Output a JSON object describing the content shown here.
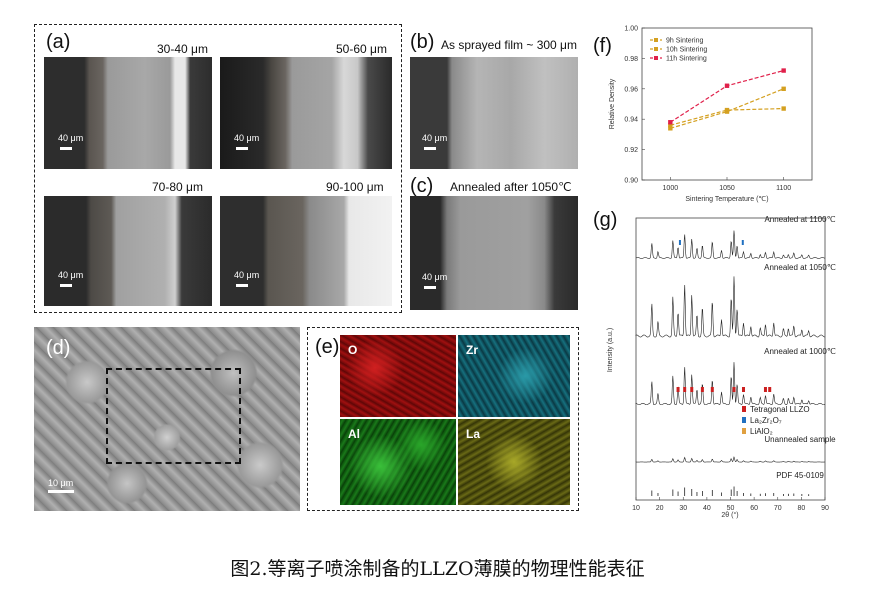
{
  "panels": {
    "a": {
      "label": "(a)",
      "images": [
        {
          "caption": "30-40 μm",
          "scale": "40 μm"
        },
        {
          "caption": "50-60 μm",
          "scale": "40 μm"
        },
        {
          "caption": "70-80 μm",
          "scale": "40 μm"
        },
        {
          "caption": "90-100 μm",
          "scale": "40 μm"
        }
      ]
    },
    "b": {
      "label": "(b)",
      "caption": "As sprayed film ~ 300 μm",
      "scale": "40 μm"
    },
    "c": {
      "label": "(c)",
      "caption": "Annealed after 1050℃",
      "scale": "40 μm"
    },
    "d": {
      "label": "(d)",
      "scale": "10 μm"
    },
    "e": {
      "label": "(e)",
      "maps": [
        "O",
        "Zr",
        "Al",
        "La"
      ],
      "map_colors": [
        "#b01010",
        "#1a8a9a",
        "#2aa62a",
        "#9a9a20"
      ]
    },
    "f": {
      "label": "(f)"
    },
    "g": {
      "label": "(g)"
    }
  },
  "chart_data": [
    {
      "type": "line",
      "xlabel": "Sintering Temperature (℃)",
      "ylabel": "Relative Density",
      "x": [
        1000,
        1050,
        1100
      ],
      "xticks": [
        "1000",
        "1050",
        "1100"
      ],
      "ylim": [
        0.9,
        1.0
      ],
      "yticks": [
        "0.90",
        "0.92",
        "0.94",
        "0.96",
        "0.98",
        "1.00"
      ],
      "legend_position": "top-left",
      "series": [
        {
          "name": "9h Sintering",
          "color": "#d4a020",
          "values": [
            0.936,
            0.946,
            0.947
          ]
        },
        {
          "name": "10h Sintering",
          "color": "#d4a020",
          "values": [
            0.934,
            0.945,
            0.96
          ]
        },
        {
          "name": "11h Sintering",
          "color": "#e0204a",
          "values": [
            0.938,
            0.962,
            0.972
          ]
        }
      ]
    },
    {
      "type": "line",
      "xlabel": "2θ (°)",
      "ylabel": "Intensity (a.u.)",
      "xlim": [
        10,
        90
      ],
      "xticks": [
        "10",
        "20",
        "30",
        "40",
        "50",
        "60",
        "70",
        "80",
        "90"
      ],
      "traces": [
        {
          "name": "Annealed at 1100℃"
        },
        {
          "name": "Annealed at 1050℃"
        },
        {
          "name": "Annealed at 1000℃"
        },
        {
          "name": "Unannealed sample"
        },
        {
          "name": "PDF 45-0109"
        }
      ],
      "legend": [
        {
          "name": "Tetragonal LLZO",
          "color": "#cc2020"
        },
        {
          "name": "La₂Zr₂O₇",
          "color": "#2070c0"
        },
        {
          "name": "LiAlO₂",
          "color": "#e0a040"
        }
      ]
    }
  ],
  "figure_caption": "图2.等离子喷涂制备的LLZO薄膜的物理性能表征"
}
